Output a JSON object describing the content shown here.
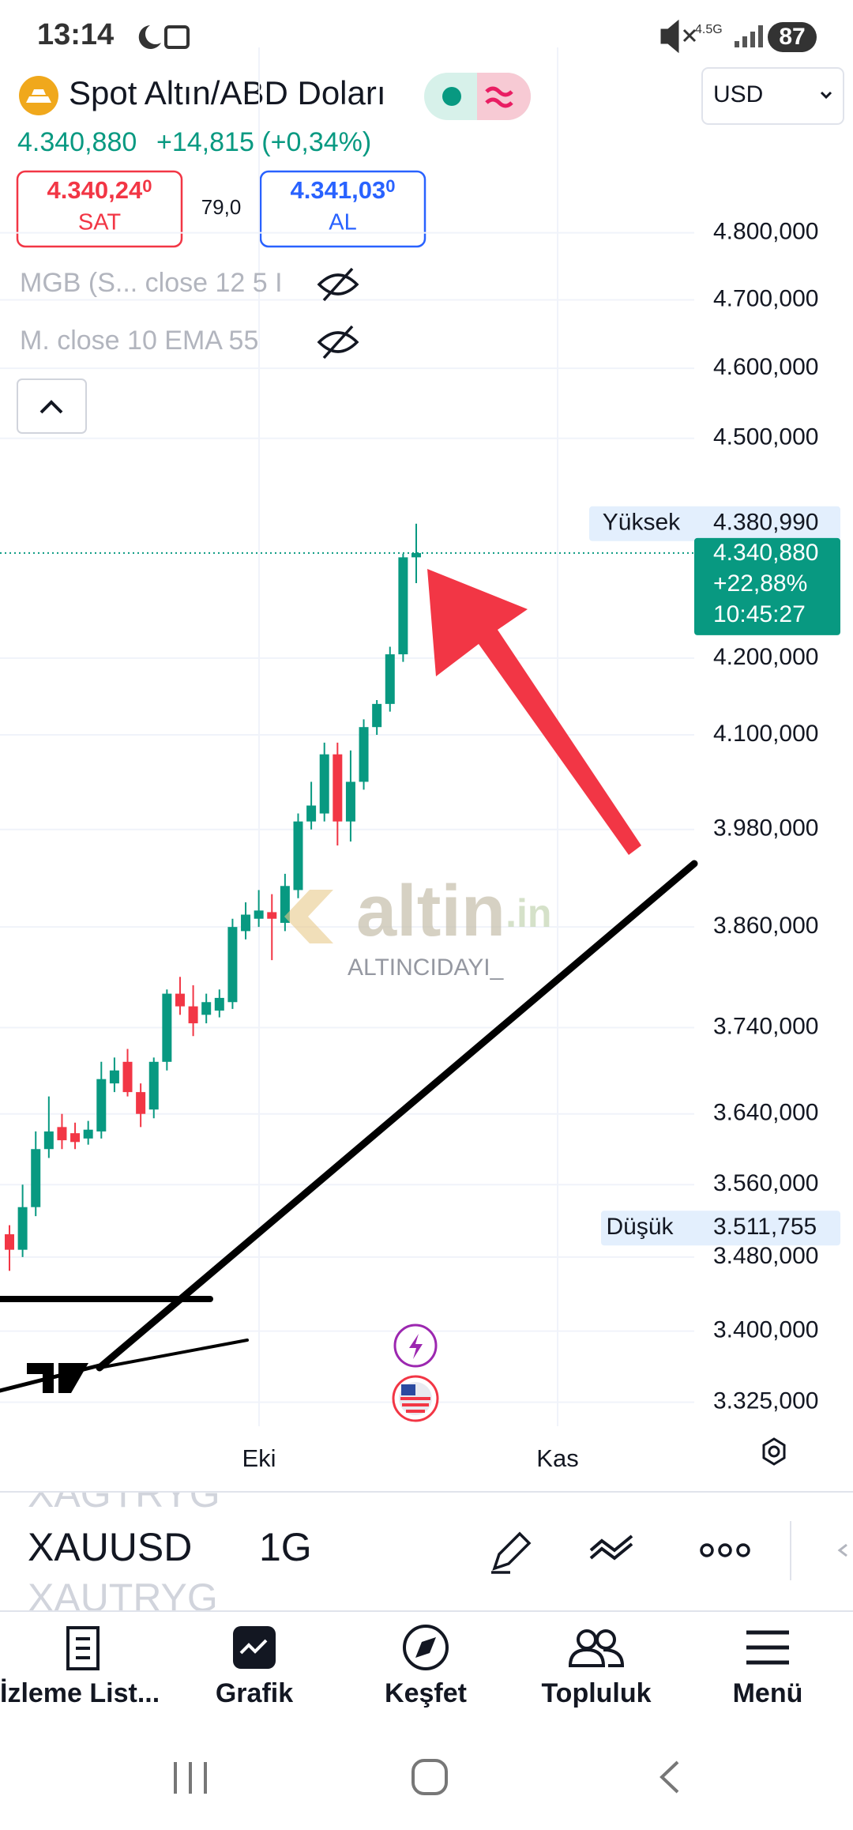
{
  "status_bar": {
    "time": "13:14",
    "network": "4.5G",
    "battery": "87"
  },
  "symbol": {
    "name": "Spot Altın/ABD Doları",
    "price": "4.340,880",
    "change": "+14,815 (+0,34%)"
  },
  "quote": {
    "sell": {
      "price": "4.340,24",
      "price_small": "0",
      "label": "SAT"
    },
    "spread": "79,0",
    "buy": {
      "price": "4.341,03",
      "price_small": "0",
      "label": "AL"
    }
  },
  "currency": "USD",
  "indicators": [
    "MGB (S... close 12 5 I",
    "M. close 10 EMA 55"
  ],
  "watermark": {
    "brand": "altin",
    "brand_suffix": ".in",
    "author": "ALTINCIDAYI_"
  },
  "chart_data": {
    "type": "candlestick",
    "log_scale": true,
    "grid": true,
    "up_color": "#089981",
    "down_color": "#f23645",
    "open": [
      3505,
      3488,
      3535,
      3600,
      3625,
      3618,
      3612,
      3620,
      3675,
      3700,
      3665,
      3645,
      3700,
      3780,
      3765,
      3755,
      3760,
      3770,
      3855,
      3870,
      3878,
      3865,
      3905,
      3990,
      4000,
      4075,
      3990,
      4040,
      4110,
      4140,
      4205,
      4335
    ],
    "high": [
      3515,
      3560,
      3620,
      3660,
      3640,
      3630,
      3632,
      3700,
      3705,
      3715,
      3675,
      3705,
      3785,
      3800,
      3790,
      3780,
      3785,
      3870,
      3890,
      3905,
      3900,
      3925,
      4000,
      4040,
      4090,
      4090,
      4080,
      4120,
      4145,
      4215,
      4340,
      4380.99
    ],
    "low": [
      3465,
      3480,
      3525,
      3590,
      3600,
      3600,
      3605,
      3612,
      3665,
      3660,
      3625,
      3635,
      3690,
      3755,
      3730,
      3745,
      3752,
      3762,
      3845,
      3860,
      3820,
      3855,
      3895,
      3980,
      3990,
      3960,
      3965,
      4030,
      4100,
      4130,
      4195,
      4300
    ],
    "close": [
      3488,
      3535,
      3600,
      3620,
      3610,
      3608,
      3622,
      3680,
      3690,
      3665,
      3640,
      3700,
      3780,
      3765,
      3745,
      3770,
      3775,
      3860,
      3875,
      3880,
      3870,
      3910,
      3990,
      4010,
      4075,
      3990,
      4040,
      4110,
      4140,
      4205,
      4335,
      4340.88
    ],
    "ylim": [
      3300,
      5070
    ],
    "yticks": [
      {
        "value": 4800,
        "label": "4.800,000"
      },
      {
        "value": 4700,
        "label": "4.700,000"
      },
      {
        "value": 4600,
        "label": "4.600,000"
      },
      {
        "value": 4500,
        "label": "4.500,000"
      },
      {
        "value": 4200,
        "label": "4.200,000"
      },
      {
        "value": 4100,
        "label": "4.100,000"
      },
      {
        "value": 3980,
        "label": "3.980,000"
      },
      {
        "value": 3860,
        "label": "3.860,000"
      },
      {
        "value": 3740,
        "label": "3.740,000"
      },
      {
        "value": 3640,
        "label": "3.640,000"
      },
      {
        "value": 3560,
        "label": "3.560,000"
      },
      {
        "value": 3480,
        "label": "3.480,000"
      },
      {
        "value": 3400,
        "label": "3.400,000"
      },
      {
        "value": 3325,
        "label": "3.325,000"
      }
    ],
    "x_labels": [
      "Eki",
      "Kas"
    ],
    "high_marker": {
      "label": "Yüksek",
      "value": 4380.99,
      "value_label": "4.380,990"
    },
    "low_marker": {
      "label": "Düşük",
      "value": 3511.755,
      "value_label": "3.511,755"
    },
    "last_price": {
      "value": 4340.88,
      "value_label": "4.340,880",
      "change": "+22,88%",
      "time": "10:45:27"
    }
  },
  "toolbar": {
    "symbol": "XAUUSD",
    "interval": "1G",
    "prev_symbol": "XAGTRYG",
    "next_symbol": "XAUTRYG"
  },
  "nav": [
    "İzleme List...",
    "Grafik",
    "Keşfet",
    "Topluluk",
    "Menü"
  ]
}
